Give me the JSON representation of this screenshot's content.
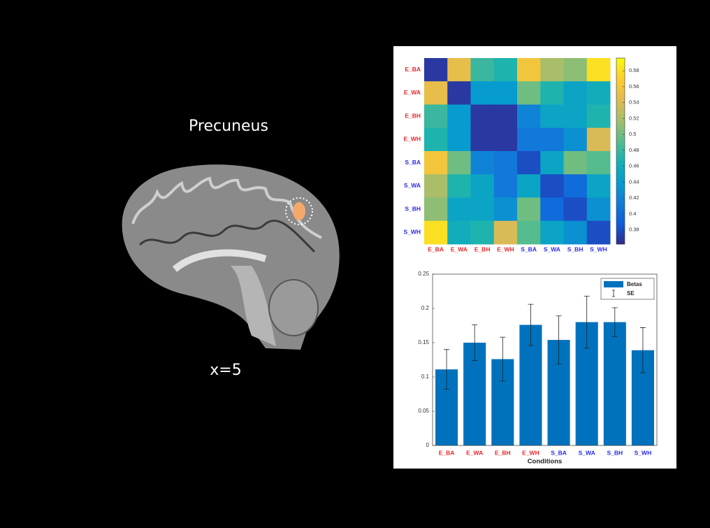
{
  "slide": {
    "title": "Precuneus",
    "coordinate": "x=5"
  },
  "chart_data": [
    {
      "type": "heatmap",
      "colormap": "parula",
      "categories": [
        "E_BA",
        "E_WA",
        "E_BH",
        "E_WH",
        "S_BA",
        "S_WA",
        "S_BH",
        "S_WH"
      ],
      "category_colors": [
        "#e8262a",
        "#e8262a",
        "#e8262a",
        "#e8262a",
        "#2a2ae8",
        "#2a2ae8",
        "#2a2ae8",
        "#2a2ae8"
      ],
      "matrix": [
        [
          0.37,
          0.55,
          0.48,
          0.47,
          0.56,
          0.52,
          0.51,
          0.58
        ],
        [
          0.55,
          0.37,
          0.44,
          0.44,
          0.5,
          0.47,
          0.45,
          0.46
        ],
        [
          0.48,
          0.44,
          0.37,
          0.37,
          0.42,
          0.45,
          0.45,
          0.47
        ],
        [
          0.47,
          0.44,
          0.37,
          0.37,
          0.41,
          0.41,
          0.43,
          0.54
        ],
        [
          0.56,
          0.5,
          0.42,
          0.41,
          0.38,
          0.45,
          0.5,
          0.49
        ],
        [
          0.52,
          0.47,
          0.45,
          0.41,
          0.45,
          0.38,
          0.4,
          0.45
        ],
        [
          0.51,
          0.45,
          0.45,
          0.43,
          0.5,
          0.4,
          0.38,
          0.43
        ],
        [
          0.58,
          0.46,
          0.47,
          0.54,
          0.49,
          0.45,
          0.43,
          0.38
        ]
      ],
      "clim": [
        0.362,
        0.596
      ],
      "cticks": [
        0.38,
        0.4,
        0.42,
        0.44,
        0.46,
        0.48,
        0.5,
        0.52,
        0.54,
        0.56,
        0.58
      ]
    },
    {
      "type": "bar",
      "categories": [
        "E_BA",
        "E_WA",
        "E_BH",
        "E_WH",
        "S_BA",
        "S_WA",
        "S_BH",
        "S_WH"
      ],
      "category_colors": [
        "#e8262a",
        "#e8262a",
        "#e8262a",
        "#e8262a",
        "#2a2ae8",
        "#2a2ae8",
        "#2a2ae8",
        "#2a2ae8"
      ],
      "series": [
        {
          "name": "Betas",
          "color": "#0072bd",
          "values": [
            0.111,
            0.15,
            0.126,
            0.176,
            0.154,
            0.18,
            0.18,
            0.139
          ],
          "errors": [
            0.029,
            0.026,
            0.032,
            0.03,
            0.035,
            0.038,
            0.021,
            0.033
          ]
        }
      ],
      "error_label": "SE",
      "x_label": "Conditions",
      "ylim": [
        0,
        0.25
      ],
      "yticks": [
        0,
        0.05,
        0.1,
        0.15,
        0.2,
        0.25
      ],
      "legend": "upper right"
    }
  ]
}
